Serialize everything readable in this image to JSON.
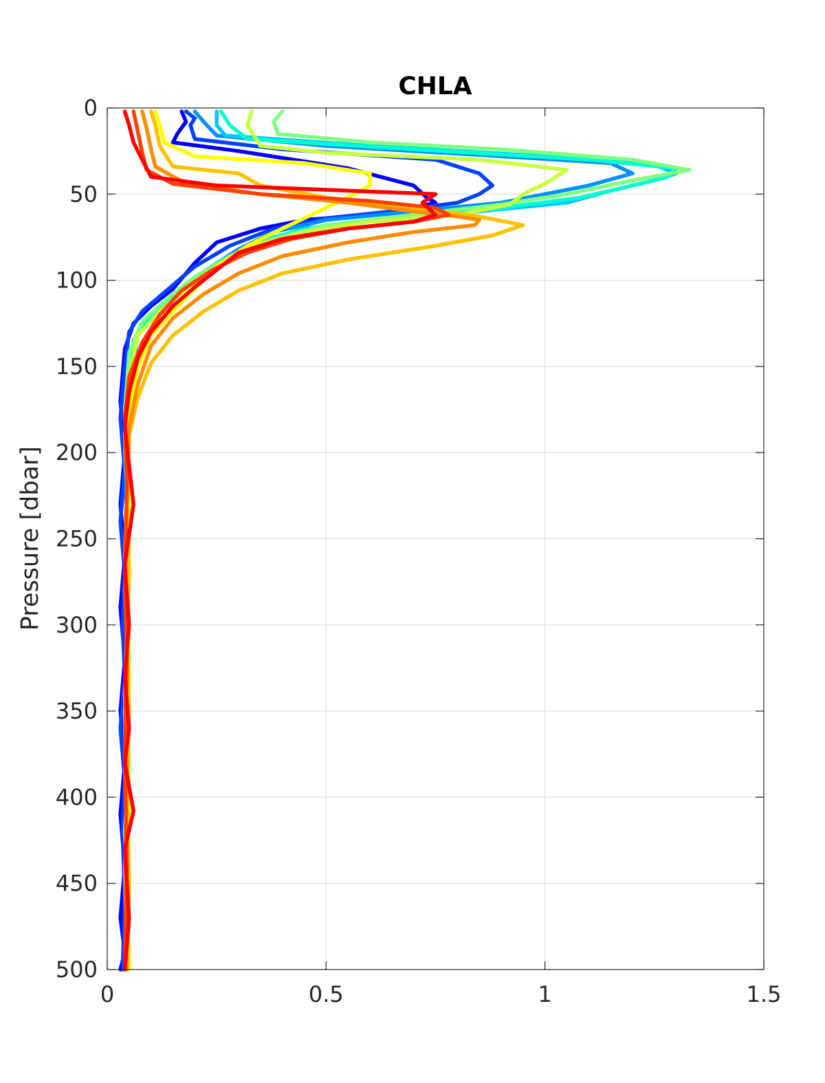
{
  "chart_data": {
    "type": "line",
    "title": "CHLA",
    "xlabel": "",
    "ylabel": "Pressure [dbar]",
    "xlim": [
      0,
      1.5
    ],
    "ylim": [
      0,
      500
    ],
    "y_reversed": true,
    "grid": true,
    "xticks": [
      0,
      0.5,
      1,
      1.5
    ],
    "xtick_labels": [
      "0",
      "0.5",
      "1",
      "1.5"
    ],
    "yticks": [
      0,
      50,
      100,
      150,
      200,
      250,
      300,
      350,
      400,
      450,
      500
    ],
    "ytick_labels": [
      "0",
      "50",
      "100",
      "150",
      "200",
      "250",
      "300",
      "350",
      "400",
      "450",
      "500"
    ],
    "series": [
      {
        "color": "#0000ff",
        "x": [
          0.17,
          0.18,
          0.16,
          0.15,
          0.3,
          0.55,
          0.7,
          0.73,
          0.75,
          0.7,
          0.6,
          0.45,
          0.35,
          0.25,
          0.2,
          0.15,
          0.1,
          0.06,
          0.04,
          0.03,
          0.04,
          0.03,
          0.04,
          0.03,
          0.04,
          0.03,
          0.04,
          0.03,
          0.04,
          0.03,
          0.04,
          0.03
        ],
        "y": [
          2,
          8,
          15,
          20,
          25,
          35,
          45,
          52,
          55,
          58,
          62,
          65,
          70,
          78,
          90,
          105,
          115,
          125,
          140,
          170,
          200,
          230,
          260,
          290,
          320,
          350,
          380,
          410,
          440,
          470,
          490,
          500
        ]
      },
      {
        "color": "#0040ff",
        "x": [
          0.18,
          0.2,
          0.19,
          0.2,
          0.4,
          0.75,
          0.85,
          0.88,
          0.85,
          0.8,
          0.65,
          0.5,
          0.38,
          0.28,
          0.2,
          0.14,
          0.08,
          0.05,
          0.04,
          0.03,
          0.04,
          0.03,
          0.04,
          0.035,
          0.04,
          0.03,
          0.04,
          0.035,
          0.04,
          0.035
        ],
        "y": [
          2,
          6,
          10,
          18,
          24,
          30,
          38,
          45,
          50,
          55,
          60,
          64,
          70,
          80,
          92,
          105,
          118,
          130,
          150,
          180,
          210,
          240,
          270,
          300,
          330,
          360,
          390,
          420,
          460,
          500
        ]
      },
      {
        "color": "#0090ff",
        "x": [
          0.2,
          0.22,
          0.25,
          0.5,
          0.9,
          1.15,
          1.2,
          1.1,
          1.0,
          0.9,
          0.7,
          0.5,
          0.38,
          0.3,
          0.22,
          0.16,
          0.1,
          0.06,
          0.045,
          0.04,
          0.045,
          0.04,
          0.045,
          0.04,
          0.045,
          0.04,
          0.045,
          0.04
        ],
        "y": [
          2,
          8,
          16,
          22,
          28,
          32,
          38,
          45,
          50,
          55,
          60,
          65,
          72,
          82,
          95,
          108,
          120,
          135,
          160,
          200,
          240,
          280,
          320,
          360,
          400,
          440,
          470,
          500
        ]
      },
      {
        "color": "#00c8ff",
        "x": [
          0.25,
          0.25,
          0.27,
          0.6,
          1.0,
          1.25,
          1.3,
          1.25,
          1.15,
          1.05,
          0.85,
          0.65,
          0.45,
          0.32,
          0.25,
          0.18,
          0.12,
          0.07,
          0.05,
          0.04,
          0.05,
          0.04,
          0.05,
          0.04,
          0.05,
          0.04,
          0.05,
          0.045
        ],
        "y": [
          2,
          10,
          16,
          22,
          28,
          33,
          38,
          42,
          48,
          55,
          60,
          64,
          70,
          80,
          92,
          104,
          118,
          132,
          160,
          200,
          240,
          280,
          320,
          360,
          400,
          440,
          470,
          500
        ]
      },
      {
        "color": "#00ffd0",
        "x": [
          0.26,
          0.28,
          0.32,
          0.7,
          1.1,
          1.3,
          1.28,
          1.2,
          1.08,
          0.9,
          0.7,
          0.5,
          0.36,
          0.28,
          0.2,
          0.14,
          0.08,
          0.05,
          0.04,
          0.05,
          0.04,
          0.05,
          0.04,
          0.05,
          0.04,
          0.05,
          0.04
        ],
        "y": [
          2,
          10,
          18,
          24,
          30,
          35,
          40,
          45,
          52,
          58,
          63,
          68,
          76,
          88,
          100,
          112,
          126,
          145,
          180,
          220,
          260,
          300,
          340,
          380,
          420,
          460,
          500
        ]
      },
      {
        "color": "#80ff80",
        "x": [
          0.4,
          0.38,
          0.39,
          0.6,
          0.9,
          1.2,
          1.33,
          1.2,
          1.05,
          0.9,
          0.7,
          0.5,
          0.38,
          0.28,
          0.2,
          0.14,
          0.08,
          0.05,
          0.04,
          0.05,
          0.04,
          0.05,
          0.04,
          0.05,
          0.04,
          0.05,
          0.045
        ],
        "y": [
          2,
          8,
          15,
          20,
          24,
          30,
          36,
          42,
          50,
          56,
          62,
          68,
          76,
          86,
          98,
          110,
          124,
          142,
          178,
          220,
          260,
          300,
          340,
          380,
          420,
          460,
          500
        ]
      },
      {
        "color": "#c8ff40",
        "x": [
          0.33,
          0.32,
          0.35,
          0.5,
          0.85,
          1.05,
          1.0,
          0.95,
          0.92,
          0.8,
          0.6,
          0.45,
          0.33,
          0.25,
          0.18,
          0.12,
          0.07,
          0.05,
          0.04,
          0.05,
          0.04,
          0.05,
          0.04,
          0.05,
          0.04,
          0.05
        ],
        "y": [
          2,
          10,
          22,
          26,
          30,
          36,
          44,
          50,
          56,
          62,
          66,
          72,
          80,
          92,
          105,
          118,
          132,
          155,
          190,
          230,
          270,
          310,
          350,
          390,
          440,
          500
        ]
      },
      {
        "color": "#ffff00",
        "x": [
          0.11,
          0.12,
          0.13,
          0.2,
          0.45,
          0.6,
          0.6,
          0.55,
          0.5,
          0.45,
          0.4,
          0.32,
          0.25,
          0.2,
          0.15,
          0.1,
          0.07,
          0.05,
          0.045,
          0.05,
          0.045,
          0.05,
          0.045,
          0.05,
          0.045,
          0.05
        ],
        "y": [
          2,
          10,
          20,
          28,
          32,
          38,
          45,
          52,
          58,
          64,
          70,
          80,
          92,
          105,
          118,
          132,
          150,
          175,
          210,
          250,
          290,
          330,
          370,
          410,
          450,
          500
        ]
      },
      {
        "color": "#ffc000",
        "x": [
          0.1,
          0.11,
          0.12,
          0.15,
          0.3,
          0.35,
          0.5,
          0.7,
          0.85,
          0.95,
          0.88,
          0.75,
          0.55,
          0.4,
          0.3,
          0.22,
          0.15,
          0.1,
          0.07,
          0.05,
          0.045,
          0.05,
          0.045,
          0.05,
          0.045,
          0.05,
          0.045
        ],
        "y": [
          2,
          10,
          22,
          34,
          38,
          45,
          52,
          58,
          63,
          68,
          74,
          80,
          88,
          96,
          106,
          118,
          132,
          148,
          168,
          190,
          230,
          270,
          310,
          350,
          400,
          450,
          500
        ]
      },
      {
        "color": "#ff8c00",
        "x": [
          0.08,
          0.09,
          0.1,
          0.11,
          0.18,
          0.35,
          0.55,
          0.7,
          0.8,
          0.85,
          0.84,
          0.7,
          0.55,
          0.4,
          0.3,
          0.22,
          0.15,
          0.1,
          0.07,
          0.05,
          0.045,
          0.04,
          0.045,
          0.04,
          0.045,
          0.04,
          0.045
        ],
        "y": [
          2,
          12,
          24,
          34,
          44,
          50,
          55,
          60,
          63,
          65,
          68,
          72,
          78,
          86,
          96,
          108,
          122,
          138,
          160,
          185,
          220,
          260,
          300,
          340,
          390,
          440,
          500
        ]
      },
      {
        "color": "#ff4000",
        "x": [
          0.06,
          0.07,
          0.08,
          0.09,
          0.15,
          0.35,
          0.6,
          0.75,
          0.78,
          0.7,
          0.55,
          0.42,
          0.32,
          0.24,
          0.17,
          0.12,
          0.08,
          0.05,
          0.04,
          0.045,
          0.04,
          0.045,
          0.04,
          0.045,
          0.04
        ],
        "y": [
          2,
          14,
          26,
          36,
          44,
          50,
          54,
          58,
          62,
          66,
          70,
          76,
          84,
          94,
          106,
          120,
          136,
          156,
          180,
          220,
          270,
          320,
          380,
          440,
          500
        ]
      },
      {
        "color": "#ff0000",
        "x": [
          0.04,
          0.05,
          0.06,
          0.08,
          0.1,
          0.25,
          0.55,
          0.75,
          0.72,
          0.75,
          0.7,
          0.55,
          0.4,
          0.3,
          0.25,
          0.2,
          0.15,
          0.1,
          0.07,
          0.05,
          0.04,
          0.06,
          0.04,
          0.05,
          0.04,
          0.05,
          0.04,
          0.06,
          0.04,
          0.05,
          0.04
        ],
        "y": [
          2,
          10,
          20,
          30,
          40,
          45,
          48,
          50,
          55,
          62,
          66,
          70,
          76,
          84,
          94,
          104,
          115,
          130,
          145,
          165,
          185,
          230,
          265,
          300,
          330,
          360,
          380,
          408,
          430,
          470,
          500
        ]
      }
    ]
  }
}
